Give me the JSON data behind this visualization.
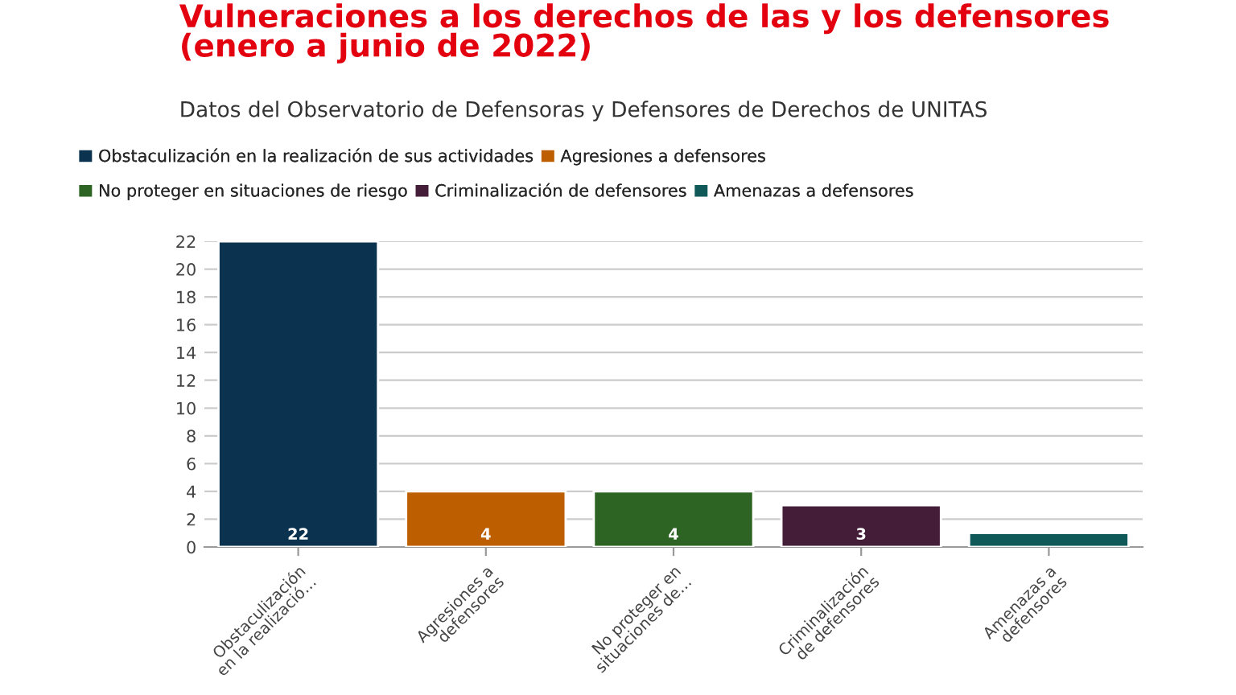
{
  "chart_data": {
    "type": "bar",
    "title": "Vulneraciones a los derechos de las y los defensores\n(enero a junio de 2022)",
    "subtitle": "Datos del Observatorio de Defensoras y Defensores de Derechos de UNITAS",
    "categories": [
      "Obstaculización\nen la realizació…",
      "Agresiones a\ndefensores",
      "No proteger en\nsituaciones de…",
      "Criminalización\nde defensores",
      "Amenazas a\ndefensores"
    ],
    "series": [
      {
        "name": "Obstaculización en la realización de sus actividades",
        "color": "#0b324f",
        "values": [
          22,
          null,
          null,
          null,
          null
        ],
        "value_labels": [
          "22",
          null,
          null,
          null,
          null
        ]
      },
      {
        "name": "Agresiones a defensores",
        "color": "#bd5f00",
        "values": [
          null,
          4,
          null,
          null,
          null
        ],
        "value_labels": [
          null,
          "4",
          null,
          null,
          null
        ]
      },
      {
        "name": "No proteger en situaciones de riesgo",
        "color": "#2e6423",
        "values": [
          null,
          null,
          4,
          null,
          null
        ],
        "value_labels": [
          null,
          null,
          "4",
          null,
          null
        ]
      },
      {
        "name": "Criminalización de defensores",
        "color": "#441d38",
        "values": [
          null,
          null,
          null,
          3,
          null
        ],
        "value_labels": [
          null,
          null,
          null,
          "3",
          null
        ]
      },
      {
        "name": "Amenazas a defensores",
        "color": "#0f5a58",
        "values": [
          null,
          null,
          null,
          null,
          1
        ],
        "value_labels": [
          null,
          null,
          null,
          null,
          null
        ]
      }
    ],
    "ylim": [
      0,
      22
    ],
    "yticks": [
      0,
      2,
      4,
      6,
      8,
      10,
      12,
      14,
      16,
      18,
      20,
      22
    ],
    "grid": "y",
    "legend": "top left"
  }
}
